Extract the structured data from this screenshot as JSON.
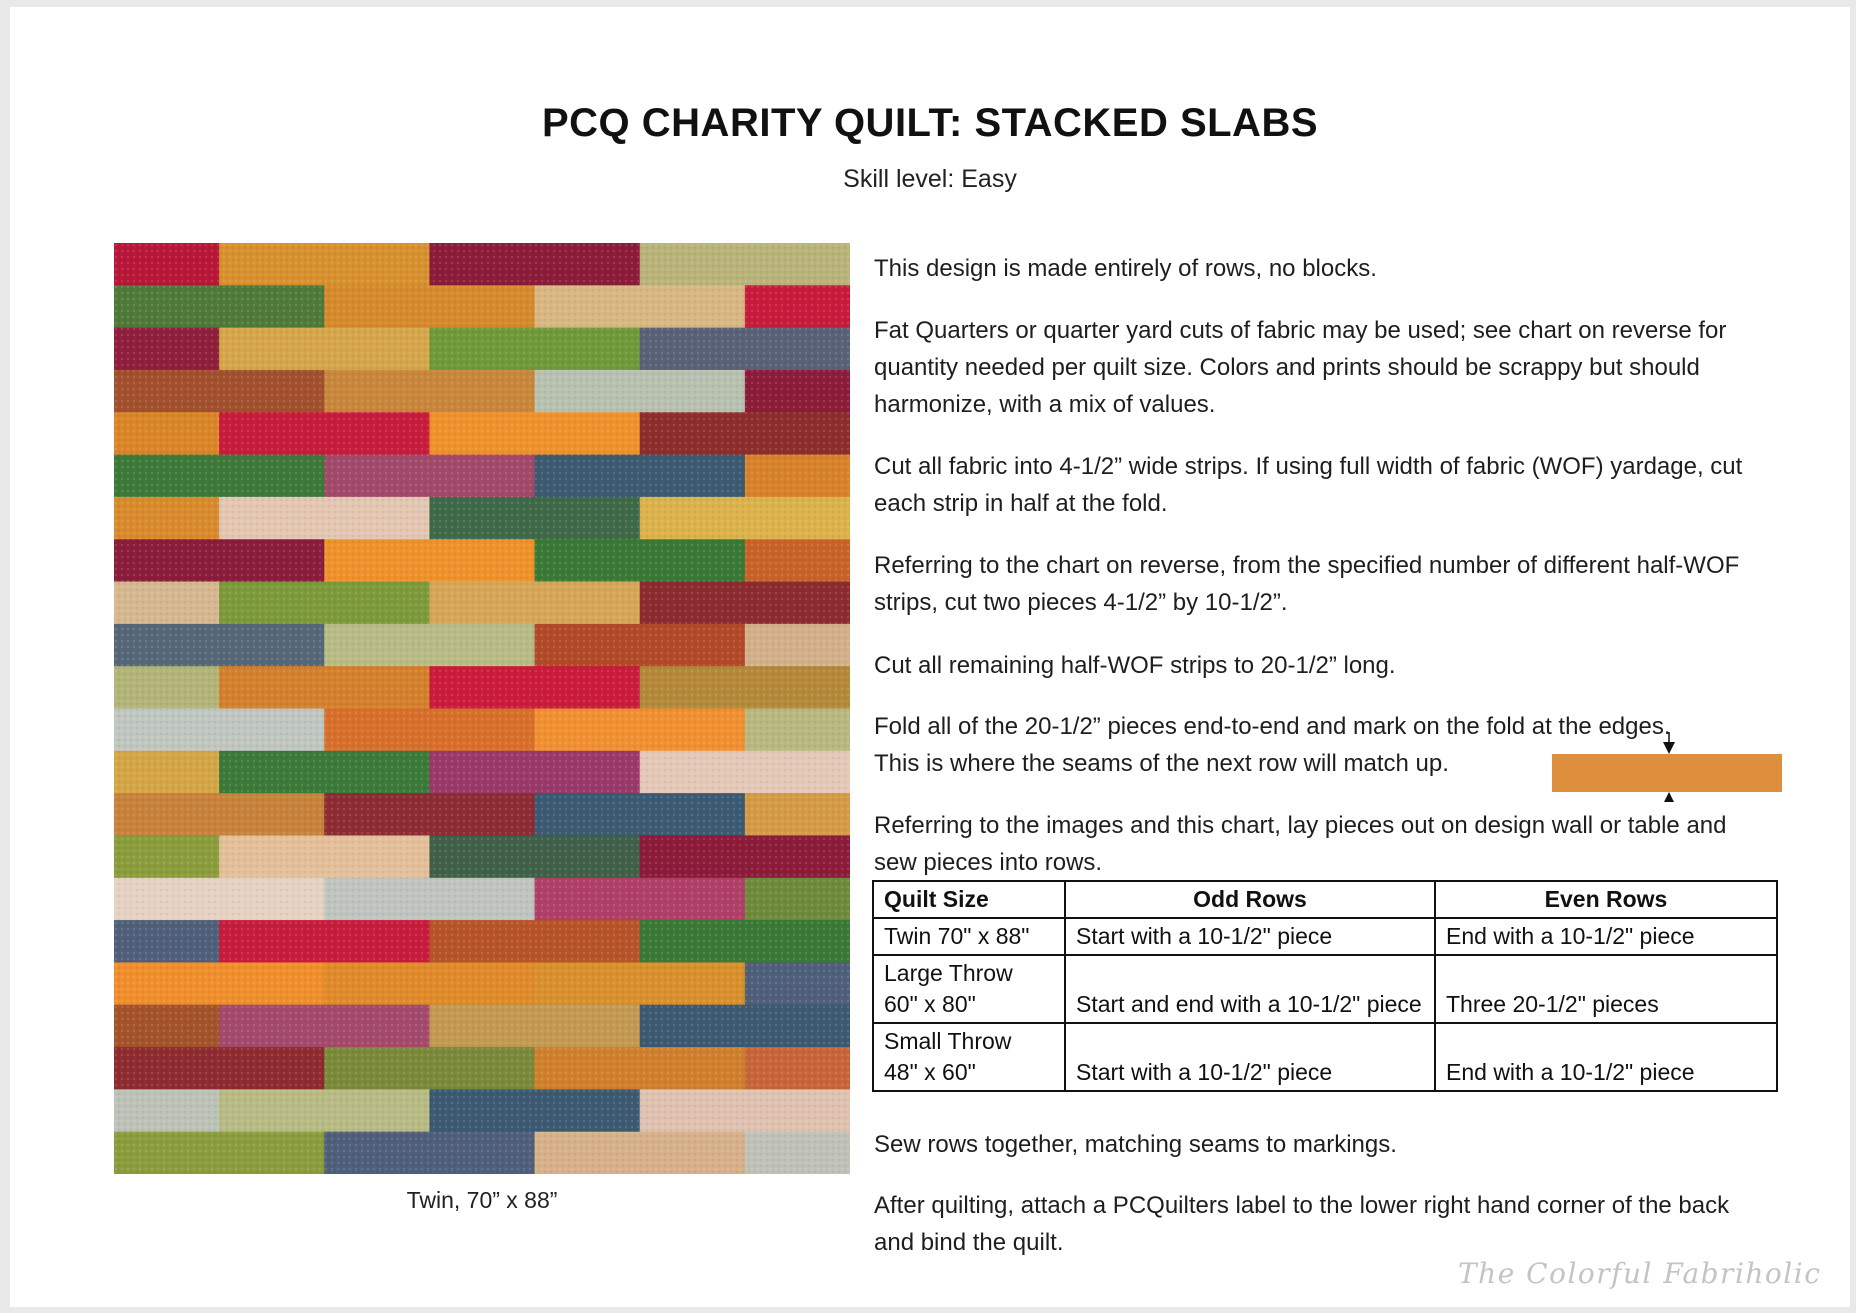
{
  "document": {
    "title": "PCQ CHARITY QUILT: STACKED SLABS",
    "subtitle": "Skill level: Easy",
    "quilt_image": {
      "caption": "Twin, 70” x 88”",
      "rows": [
        [
          "#b8173a",
          "#d8912f",
          "#8c1c3a",
          "#b8b47a"
        ],
        [
          "#4f7a3a",
          "#d68a2c",
          "#d9b782",
          "#c91c3c"
        ],
        [
          "#8f1f3c",
          "#d6a64a",
          "#6f9a3a",
          "#5a6278"
        ],
        [
          "#a2502e",
          "#c9873c",
          "#b8c1b0",
          "#8c1c3a"
        ],
        [
          "#da8628",
          "#c81c3c",
          "#f0922c",
          "#8e2e2c"
        ],
        [
          "#3d7a3a",
          "#a24a6a",
          "#3c5a70",
          "#d8822c"
        ],
        [
          "#d98a2c",
          "#e4c7b2",
          "#3f6a4a",
          "#dbb24c"
        ],
        [
          "#8a1c3c",
          "#f0922c",
          "#3b7a36",
          "#c8642a"
        ],
        [
          "#d6b890",
          "#7d9a3a",
          "#d7a758",
          "#8c2c30"
        ],
        [
          "#566878",
          "#b8bc84",
          "#b24a2a",
          "#d4b08a"
        ],
        [
          "#b2b478",
          "#d4802c",
          "#cb1c3c",
          "#b48a3a"
        ],
        [
          "#c0c6c0",
          "#d8702c",
          "#f09030",
          "#b8b880"
        ],
        [
          "#d4a646",
          "#3c7a3a",
          "#9a3a6a",
          "#e4c9b8"
        ],
        [
          "#c8823c",
          "#8e2c34",
          "#3c5a72",
          "#d49a46"
        ],
        [
          "#8a9c3c",
          "#e4c09a",
          "#406048",
          "#8c1c3a"
        ],
        [
          "#e6d2c2",
          "#c0c4c0",
          "#b04068",
          "#6f8a3a"
        ],
        [
          "#50607a",
          "#c81c3c",
          "#b8542a",
          "#3b7a36"
        ],
        [
          "#f08e2c",
          "#e08a2a",
          "#d8902c",
          "#50607a"
        ],
        [
          "#a4542a",
          "#a44a6c",
          "#c49a52",
          "#3c5a72"
        ],
        [
          "#8e2c30",
          "#7a8a3a",
          "#d0802c",
          "#c8643a"
        ],
        [
          "#bcc2b8",
          "#b8bc84",
          "#3c5a72",
          "#e0c2b0"
        ],
        [
          "#8a9c3c",
          "#50607a",
          "#d7b18a",
          "#c0c2b8"
        ]
      ]
    },
    "paragraphs": [
      "This design is made entirely of rows, no blocks.",
      "Fat Quarters or quarter yard cuts of fabric may be used; see chart on reverse for quantity needed per quilt size. Colors and prints should be scrappy but should harmonize, with a mix of values.",
      "Cut all fabric into 4-1/2” wide strips. If using full width of fabric (WOF) yardage, cut each strip in half at the fold.",
      "Referring to the chart on reverse, from the specified number of different half-WOF strips, cut two pieces 4-1/2” by 10-1/2”.",
      "Cut all remaining half-WOF strips to 20-1/2” long.",
      "Fold all of the 20-1/2” pieces end-to-end and mark on the fold at the edges. This is where the seams of the next row will match up.",
      "Referring to the images and this chart, lay pieces out on design wall or table and sew pieces into rows."
    ],
    "fold_strip_color": "#de8f3e",
    "table": {
      "headers": [
        "Quilt Size",
        "Odd Rows",
        "Even Rows"
      ],
      "rows": [
        {
          "size": "Twin 70\" x 88\"",
          "odd": "Start with a 10-1/2\" piece",
          "even": "End with a 10-1/2\" piece"
        },
        {
          "size_line1": "Large Throw",
          "size_line2": "60\" x 80\"",
          "odd": "Start and end with a 10-1/2\" piece",
          "even": "Three 20-1/2\" pieces"
        },
        {
          "size_line1": "Small Throw",
          "size_line2": "48\" x 60\"",
          "odd": "Start with a 10-1/2\" piece",
          "even": "End with a 10-1/2\" piece"
        }
      ]
    },
    "after_paragraphs": [
      "Sew rows together, matching seams to markings.",
      "After quilting, attach a PCQuilters label to the lower right hand corner of the back and bind the quilt."
    ],
    "watermark": "The Colorful Fabriholic"
  }
}
